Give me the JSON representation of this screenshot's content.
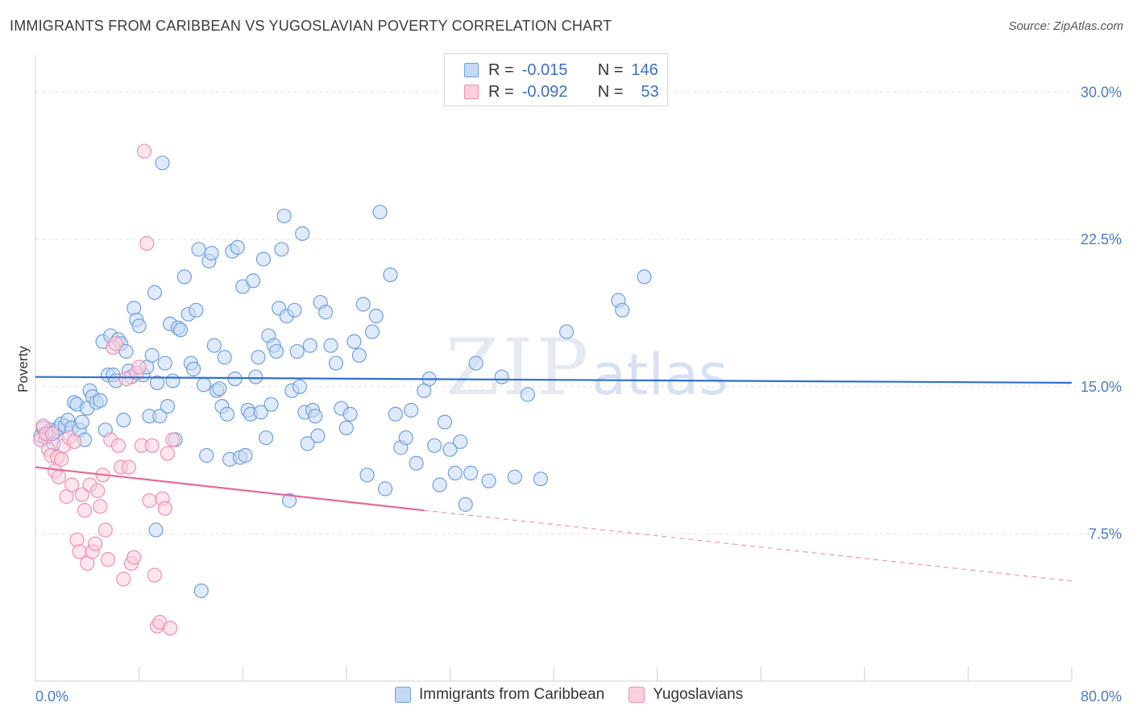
{
  "header": {
    "title": "IMMIGRANTS FROM CARIBBEAN VS YUGOSLAVIAN POVERTY CORRELATION CHART",
    "source": "Source: ZipAtlas.com"
  },
  "watermark": {
    "zip": "ZIP",
    "atlas": "atlas"
  },
  "legend": {
    "r_label": "R =",
    "n_label": "N =",
    "rows": [
      {
        "r": "-0.015",
        "n": "146",
        "color": "#6fa0e0",
        "fill": "#c5d8f5"
      },
      {
        "r": "-0.092",
        "n": "53",
        "color": "#f08fb0",
        "fill": "#fbd0de"
      }
    ]
  },
  "bottom_legend": {
    "items": [
      {
        "label": "Immigrants from Caribbean",
        "color": "#6fa0e0",
        "fill": "#c5d8f5"
      },
      {
        "label": "Yugoslavians",
        "color": "#f08fb0",
        "fill": "#fbd0de"
      }
    ]
  },
  "chart_data": {
    "type": "scatter",
    "title": "IMMIGRANTS FROM CARIBBEAN VS YUGOSLAVIAN POVERTY CORRELATION CHART",
    "xlabel": "",
    "ylabel": "Poverty",
    "xlim": [
      0,
      80
    ],
    "ylim": [
      0,
      31.5
    ],
    "x_ticks_labeled": [
      "0.0%",
      "80.0%"
    ],
    "y_ticks": [
      7.5,
      15.0,
      22.5,
      30.0
    ],
    "y_tick_labels": [
      "7.5%",
      "15.0%",
      "22.5%",
      "30.0%"
    ],
    "grid": "horizontal dashed",
    "legend_position": "top-center",
    "series": [
      {
        "name": "Immigrants from Caribbean",
        "color": "#6fa0e0",
        "fill": "#c5d8f5",
        "trend": {
          "x": [
            0,
            80
          ],
          "y": [
            15.5,
            15.2
          ],
          "style": "solid"
        },
        "points": [
          [
            0.4,
            12.5
          ],
          [
            0.6,
            12.9
          ],
          [
            0.8,
            12.4
          ],
          [
            1.0,
            12.6
          ],
          [
            1.2,
            12.8
          ],
          [
            1.4,
            12.1
          ],
          [
            1.5,
            12.7
          ],
          [
            1.8,
            12.9
          ],
          [
            2.0,
            13.1
          ],
          [
            2.3,
            13.0
          ],
          [
            2.5,
            13.3
          ],
          [
            2.8,
            12.9
          ],
          [
            3.0,
            14.2
          ],
          [
            3.2,
            14.1
          ],
          [
            3.4,
            12.8
          ],
          [
            3.6,
            13.2
          ],
          [
            3.8,
            12.3
          ],
          [
            4.0,
            13.9
          ],
          [
            4.2,
            14.8
          ],
          [
            4.4,
            14.5
          ],
          [
            4.7,
            14.2
          ],
          [
            5.0,
            14.3
          ],
          [
            5.2,
            17.3
          ],
          [
            5.4,
            12.8
          ],
          [
            5.6,
            15.6
          ],
          [
            5.8,
            17.6
          ],
          [
            6.0,
            15.6
          ],
          [
            6.2,
            15.3
          ],
          [
            6.4,
            17.4
          ],
          [
            6.6,
            17.2
          ],
          [
            6.8,
            13.3
          ],
          [
            7.0,
            16.8
          ],
          [
            7.2,
            15.8
          ],
          [
            7.4,
            15.5
          ],
          [
            7.6,
            19.0
          ],
          [
            7.8,
            18.4
          ],
          [
            8.0,
            18.1
          ],
          [
            8.3,
            15.6
          ],
          [
            8.6,
            16.0
          ],
          [
            8.8,
            13.5
          ],
          [
            9.0,
            16.6
          ],
          [
            9.2,
            19.8
          ],
          [
            9.4,
            15.2
          ],
          [
            9.6,
            13.5
          ],
          [
            9.8,
            26.4
          ],
          [
            10.0,
            16.2
          ],
          [
            10.2,
            14.0
          ],
          [
            10.4,
            18.2
          ],
          [
            10.6,
            15.3
          ],
          [
            10.8,
            12.3
          ],
          [
            11.0,
            18.0
          ],
          [
            11.2,
            17.9
          ],
          [
            11.5,
            20.6
          ],
          [
            11.8,
            18.7
          ],
          [
            12.0,
            16.2
          ],
          [
            12.2,
            15.9
          ],
          [
            12.4,
            18.9
          ],
          [
            12.6,
            22.0
          ],
          [
            12.8,
            4.6
          ],
          [
            13.0,
            15.1
          ],
          [
            13.2,
            11.5
          ],
          [
            13.4,
            21.4
          ],
          [
            13.6,
            21.8
          ],
          [
            13.8,
            17.1
          ],
          [
            14.0,
            14.8
          ],
          [
            14.2,
            14.9
          ],
          [
            14.4,
            14.0
          ],
          [
            14.6,
            16.5
          ],
          [
            14.8,
            13.6
          ],
          [
            15.0,
            11.3
          ],
          [
            15.2,
            21.9
          ],
          [
            15.4,
            15.4
          ],
          [
            15.6,
            22.1
          ],
          [
            15.8,
            11.4
          ],
          [
            16.0,
            20.1
          ],
          [
            16.2,
            11.5
          ],
          [
            16.4,
            13.8
          ],
          [
            16.6,
            13.6
          ],
          [
            16.8,
            20.4
          ],
          [
            17.0,
            15.5
          ],
          [
            17.2,
            16.5
          ],
          [
            17.4,
            13.7
          ],
          [
            17.6,
            21.5
          ],
          [
            17.8,
            12.4
          ],
          [
            18.0,
            17.6
          ],
          [
            18.2,
            14.1
          ],
          [
            18.4,
            17.1
          ],
          [
            18.6,
            16.8
          ],
          [
            18.8,
            19.0
          ],
          [
            19.0,
            22.0
          ],
          [
            19.2,
            23.7
          ],
          [
            19.4,
            18.6
          ],
          [
            19.6,
            9.2
          ],
          [
            19.8,
            14.8
          ],
          [
            20.0,
            18.9
          ],
          [
            20.2,
            16.8
          ],
          [
            20.4,
            15.0
          ],
          [
            20.6,
            22.8
          ],
          [
            20.8,
            13.7
          ],
          [
            21.0,
            12.1
          ],
          [
            21.2,
            17.1
          ],
          [
            21.4,
            13.8
          ],
          [
            21.6,
            13.5
          ],
          [
            21.8,
            12.5
          ],
          [
            22.0,
            19.3
          ],
          [
            22.4,
            18.8
          ],
          [
            22.8,
            17.1
          ],
          [
            23.2,
            16.2
          ],
          [
            23.6,
            13.9
          ],
          [
            24.0,
            12.9
          ],
          [
            24.3,
            13.6
          ],
          [
            24.6,
            17.3
          ],
          [
            25.0,
            16.6
          ],
          [
            25.3,
            19.2
          ],
          [
            25.6,
            10.5
          ],
          [
            26.0,
            17.8
          ],
          [
            26.3,
            18.6
          ],
          [
            26.6,
            23.9
          ],
          [
            27.0,
            9.8
          ],
          [
            27.4,
            20.7
          ],
          [
            27.8,
            13.6
          ],
          [
            28.2,
            11.9
          ],
          [
            28.6,
            12.4
          ],
          [
            29.0,
            13.8
          ],
          [
            29.4,
            11.1
          ],
          [
            30.0,
            14.8
          ],
          [
            30.4,
            15.4
          ],
          [
            30.8,
            12.0
          ],
          [
            31.2,
            10.0
          ],
          [
            31.6,
            13.2
          ],
          [
            32.0,
            11.8
          ],
          [
            32.4,
            10.6
          ],
          [
            32.8,
            12.2
          ],
          [
            33.2,
            9.0
          ],
          [
            33.6,
            10.6
          ],
          [
            34.0,
            16.2
          ],
          [
            35.0,
            10.2
          ],
          [
            36.0,
            15.5
          ],
          [
            37.0,
            10.4
          ],
          [
            38.0,
            14.6
          ],
          [
            39.0,
            10.3
          ],
          [
            41.0,
            17.8
          ],
          [
            45.0,
            19.4
          ],
          [
            45.3,
            18.9
          ],
          [
            47.0,
            20.6
          ],
          [
            9.3,
            7.7
          ]
        ]
      },
      {
        "name": "Yugoslavians",
        "color": "#f08fb0",
        "fill": "#fbd0de",
        "trend": {
          "x": [
            0,
            30
          ],
          "y": [
            10.9,
            8.7
          ],
          "style": "solid",
          "extended": {
            "x": [
              30,
              80
            ],
            "y": [
              8.7,
              5.1
            ],
            "style": "dashed"
          }
        },
        "points": [
          [
            0.4,
            12.3
          ],
          [
            0.6,
            13.0
          ],
          [
            0.8,
            12.6
          ],
          [
            1.0,
            11.8
          ],
          [
            1.2,
            11.5
          ],
          [
            1.3,
            12.6
          ],
          [
            1.5,
            10.7
          ],
          [
            1.7,
            11.4
          ],
          [
            1.8,
            10.4
          ],
          [
            2.0,
            11.3
          ],
          [
            2.2,
            12.0
          ],
          [
            2.4,
            9.4
          ],
          [
            2.6,
            12.4
          ],
          [
            2.8,
            10.0
          ],
          [
            3.0,
            12.2
          ],
          [
            3.2,
            7.2
          ],
          [
            3.4,
            6.6
          ],
          [
            3.6,
            9.5
          ],
          [
            3.8,
            8.7
          ],
          [
            4.0,
            6.0
          ],
          [
            4.2,
            10.0
          ],
          [
            4.4,
            6.6
          ],
          [
            4.6,
            7.0
          ],
          [
            4.8,
            9.7
          ],
          [
            5.0,
            8.9
          ],
          [
            5.2,
            10.5
          ],
          [
            5.4,
            7.7
          ],
          [
            5.6,
            6.2
          ],
          [
            5.8,
            12.3
          ],
          [
            6.0,
            17.0
          ],
          [
            6.2,
            17.2
          ],
          [
            6.4,
            12.0
          ],
          [
            6.6,
            10.9
          ],
          [
            6.8,
            5.2
          ],
          [
            7.0,
            15.4
          ],
          [
            7.2,
            10.9
          ],
          [
            7.4,
            6.0
          ],
          [
            7.6,
            6.3
          ],
          [
            7.8,
            15.7
          ],
          [
            8.0,
            16.0
          ],
          [
            8.2,
            12.0
          ],
          [
            8.4,
            27.0
          ],
          [
            8.6,
            22.3
          ],
          [
            8.8,
            9.2
          ],
          [
            9.0,
            12.0
          ],
          [
            9.2,
            5.4
          ],
          [
            9.4,
            2.8
          ],
          [
            9.6,
            3.0
          ],
          [
            9.8,
            9.3
          ],
          [
            10.0,
            8.8
          ],
          [
            10.2,
            11.6
          ],
          [
            10.4,
            2.7
          ],
          [
            10.6,
            12.3
          ]
        ]
      }
    ]
  }
}
